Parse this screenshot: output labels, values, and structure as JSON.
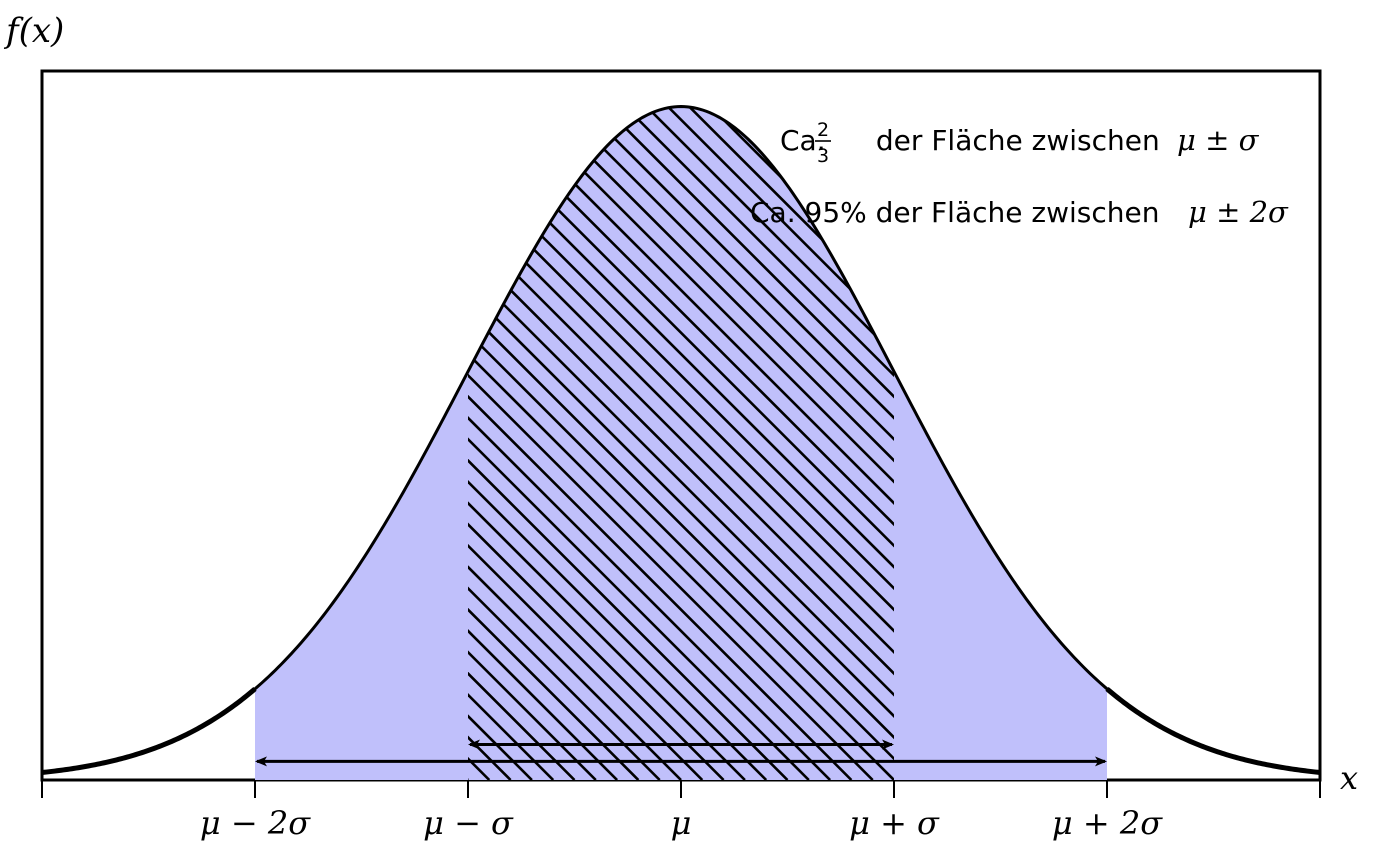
{
  "chart_data": {
    "type": "area",
    "title": "",
    "xlabel": "x",
    "ylabel": "f(x)",
    "distribution": "normal",
    "mu": 0,
    "sigma": 1,
    "xlim": [
      -3,
      3
    ],
    "ylim": [
      0,
      0.42
    ],
    "x_ticks": [
      -3,
      -2,
      -1,
      0,
      1,
      2,
      3
    ],
    "x_tick_labels": [
      {
        "value": -2,
        "label": "μ − 2σ"
      },
      {
        "value": -1,
        "label": "μ − σ"
      },
      {
        "value": 0,
        "label": "μ"
      },
      {
        "value": 1,
        "label": "μ + σ"
      },
      {
        "value": 2,
        "label": "μ + 2σ"
      }
    ],
    "regions": [
      {
        "name": "two-sigma",
        "from": -2,
        "to": 2,
        "fill": "#c0c0fb",
        "style": "solid"
      },
      {
        "name": "one-sigma",
        "from": -1,
        "to": 1,
        "fill": "#000000",
        "style": "hatched"
      }
    ],
    "arrows": [
      {
        "name": "one-sigma-arrow",
        "from": -1,
        "to": 1,
        "y": 0.021
      },
      {
        "name": "two-sigma-arrow",
        "from": -2,
        "to": 2,
        "y": 0.011
      }
    ],
    "annotations": [
      {
        "prefix": "Ca. ",
        "fraction_num": "2",
        "fraction_den": "3",
        "text": " der Fläche zwischen ",
        "math": "μ ± σ"
      },
      {
        "prefix": "Ca. 95% der Fläche zwischen ",
        "math": "μ ± 2σ"
      }
    ],
    "grid": false,
    "legend": "none",
    "colors": {
      "curve": "#000000",
      "band_fill": "#c0c0fb",
      "hatch": "#000000",
      "frame": "#000000"
    }
  }
}
